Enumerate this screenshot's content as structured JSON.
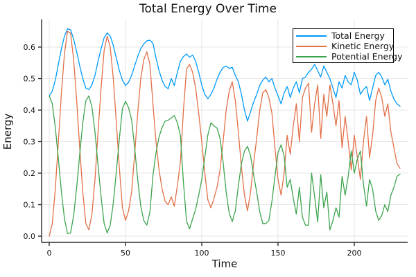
{
  "title": "Total Energy Over Time",
  "axes": {
    "x_label": "Time",
    "y_label": "Energy",
    "x_tick_labels": [
      "0",
      "50",
      "100",
      "150",
      "200"
    ],
    "y_tick_labels": [
      "0.0",
      "0.1",
      "0.2",
      "0.3",
      "0.4",
      "0.5",
      "0.6"
    ]
  },
  "legend": {
    "entries": [
      {
        "label": "Total Energy",
        "color": "#009AFA"
      },
      {
        "label": "Kinetic Energy",
        "color": "#E36F47"
      },
      {
        "label": "Potential Energy",
        "color": "#3DA44E"
      }
    ]
  },
  "colors": {
    "total": "#009AFA",
    "kinetic": "#E36F47",
    "potential": "#3DA44E",
    "grid": "#e6e6e6",
    "axis": "#2b2b2b",
    "text": "#111111",
    "background": "#ffffff"
  },
  "chart_data": {
    "type": "line",
    "title": "Total Energy Over Time",
    "xlabel": "Time",
    "ylabel": "Energy",
    "xlim": [
      -5,
      235
    ],
    "ylim": [
      -0.02,
      0.688
    ],
    "x_ticks": [
      0,
      50,
      100,
      150,
      200
    ],
    "y_ticks": [
      0.0,
      0.1,
      0.2,
      0.3,
      0.4,
      0.5,
      0.6
    ],
    "grid": true,
    "legend_position": "top-right",
    "x": [
      0,
      2,
      4,
      6,
      8,
      10,
      12,
      14,
      16,
      18,
      20,
      22,
      24,
      26,
      28,
      30,
      32,
      34,
      36,
      38,
      40,
      42,
      44,
      46,
      48,
      50,
      52,
      54,
      56,
      58,
      60,
      62,
      64,
      66,
      68,
      70,
      72,
      74,
      76,
      78,
      80,
      82,
      84,
      86,
      88,
      90,
      92,
      94,
      96,
      98,
      100,
      102,
      104,
      106,
      108,
      110,
      112,
      114,
      116,
      118,
      120,
      122,
      124,
      126,
      128,
      130,
      132,
      134,
      136,
      138,
      140,
      142,
      144,
      146,
      148,
      150,
      152,
      154,
      156,
      158,
      160,
      162,
      164,
      166,
      168,
      170,
      172,
      174,
      176,
      178,
      180,
      182,
      184,
      186,
      188,
      190,
      192,
      194,
      196,
      198,
      200,
      202,
      204,
      206,
      208,
      210,
      212,
      214,
      216,
      218,
      220,
      222,
      224,
      226,
      228,
      230
    ],
    "series": [
      {
        "name": "Total Energy",
        "color": "#009AFA",
        "values": [
          0.445,
          0.46,
          0.495,
          0.545,
          0.595,
          0.635,
          0.658,
          0.655,
          0.625,
          0.585,
          0.54,
          0.5,
          0.47,
          0.465,
          0.48,
          0.51,
          0.555,
          0.595,
          0.63,
          0.645,
          0.635,
          0.605,
          0.565,
          0.525,
          0.495,
          0.478,
          0.488,
          0.51,
          0.54,
          0.57,
          0.595,
          0.61,
          0.62,
          0.622,
          0.612,
          0.565,
          0.525,
          0.495,
          0.475,
          0.468,
          0.5,
          0.478,
          0.52,
          0.555,
          0.57,
          0.578,
          0.568,
          0.575,
          0.555,
          0.52,
          0.48,
          0.45,
          0.436,
          0.45,
          0.47,
          0.498,
          0.52,
          0.535,
          0.54,
          0.532,
          0.536,
          0.51,
          0.49,
          0.45,
          0.4,
          0.365,
          0.395,
          0.425,
          0.45,
          0.478,
          0.495,
          0.505,
          0.49,
          0.5,
          0.47,
          0.445,
          0.42,
          0.455,
          0.475,
          0.44,
          0.47,
          0.49,
          0.455,
          0.5,
          0.505,
          0.52,
          0.53,
          0.545,
          0.525,
          0.505,
          0.54,
          0.52,
          0.5,
          0.47,
          0.44,
          0.49,
          0.47,
          0.51,
          0.49,
          0.48,
          0.52,
          0.495,
          0.45,
          0.465,
          0.475,
          0.43,
          0.47,
          0.51,
          0.52,
          0.505,
          0.48,
          0.498,
          0.46,
          0.435,
          0.42,
          0.412
        ]
      },
      {
        "name": "Kinetic Energy",
        "color": "#E36F47",
        "values": [
          0.0,
          0.04,
          0.15,
          0.3,
          0.455,
          0.58,
          0.65,
          0.645,
          0.56,
          0.43,
          0.28,
          0.14,
          0.04,
          0.02,
          0.07,
          0.18,
          0.33,
          0.47,
          0.59,
          0.635,
          0.6,
          0.5,
          0.36,
          0.215,
          0.09,
          0.05,
          0.08,
          0.14,
          0.26,
          0.39,
          0.5,
          0.56,
          0.585,
          0.545,
          0.42,
          0.3,
          0.21,
          0.15,
          0.11,
          0.1,
          0.125,
          0.095,
          0.16,
          0.235,
          0.4,
          0.53,
          0.545,
          0.52,
          0.47,
          0.39,
          0.3,
          0.2,
          0.115,
          0.09,
          0.12,
          0.155,
          0.21,
          0.3,
          0.4,
          0.46,
          0.49,
          0.43,
          0.33,
          0.22,
          0.13,
          0.08,
          0.14,
          0.23,
          0.31,
          0.4,
          0.455,
          0.465,
          0.44,
          0.39,
          0.28,
          0.18,
          0.13,
          0.2,
          0.32,
          0.26,
          0.35,
          0.42,
          0.3,
          0.44,
          0.47,
          0.485,
          0.33,
          0.42,
          0.48,
          0.31,
          0.45,
          0.38,
          0.48,
          0.42,
          0.35,
          0.43,
          0.28,
          0.38,
          0.3,
          0.21,
          0.32,
          0.25,
          0.18,
          0.3,
          0.38,
          0.25,
          0.32,
          0.43,
          0.47,
          0.44,
          0.38,
          0.42,
          0.33,
          0.28,
          0.23,
          0.215
        ]
      },
      {
        "name": "Potential Energy",
        "color": "#3DA44E",
        "values": [
          0.445,
          0.42,
          0.345,
          0.245,
          0.14,
          0.055,
          0.008,
          0.01,
          0.065,
          0.155,
          0.26,
          0.36,
          0.43,
          0.445,
          0.41,
          0.33,
          0.225,
          0.125,
          0.04,
          0.01,
          0.035,
          0.105,
          0.205,
          0.31,
          0.405,
          0.428,
          0.408,
          0.37,
          0.28,
          0.18,
          0.095,
          0.05,
          0.035,
          0.077,
          0.192,
          0.265,
          0.315,
          0.345,
          0.365,
          0.368,
          0.375,
          0.383,
          0.36,
          0.32,
          0.17,
          0.048,
          0.023,
          0.055,
          0.085,
          0.13,
          0.18,
          0.25,
          0.321,
          0.36,
          0.35,
          0.343,
          0.31,
          0.235,
          0.14,
          0.072,
          0.046,
          0.08,
          0.16,
          0.23,
          0.27,
          0.285,
          0.255,
          0.195,
          0.14,
          0.078,
          0.04,
          0.04,
          0.05,
          0.11,
          0.19,
          0.265,
          0.29,
          0.255,
          0.155,
          0.18,
          0.12,
          0.07,
          0.155,
          0.06,
          0.035,
          0.035,
          0.2,
          0.125,
          0.045,
          0.195,
          0.09,
          0.14,
          0.02,
          0.05,
          0.09,
          0.06,
          0.19,
          0.13,
          0.19,
          0.27,
          0.2,
          0.245,
          0.27,
          0.165,
          0.095,
          0.18,
          0.15,
          0.08,
          0.05,
          0.065,
          0.1,
          0.078,
          0.13,
          0.155,
          0.19,
          0.197
        ]
      }
    ]
  }
}
